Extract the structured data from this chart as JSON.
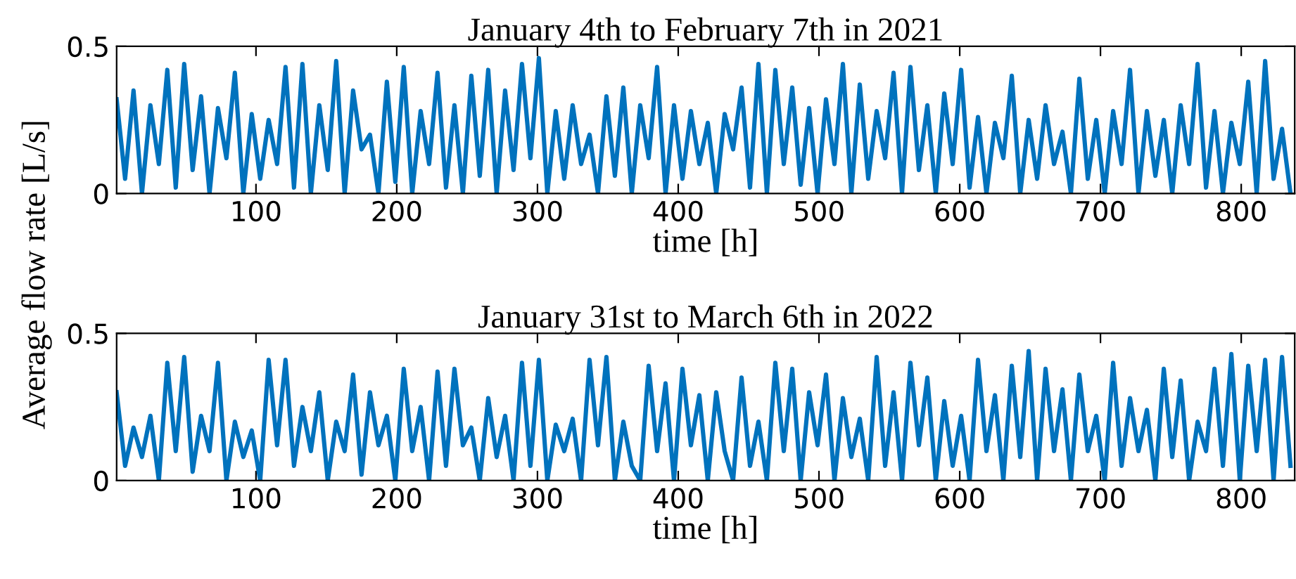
{
  "chart_data": [
    {
      "type": "line",
      "title": "January 4th to February 7th in 2021",
      "xlabel": "time [h]",
      "ylabel": "Average flow rate [L/s]",
      "xlim": [
        1,
        838
      ],
      "ylim": [
        0,
        0.5
      ],
      "xticks": [
        100,
        200,
        300,
        400,
        500,
        600,
        700,
        800
      ],
      "yticks": [
        0,
        0.5
      ],
      "grid": false,
      "legend": false,
      "line_style": "solid",
      "marker": "none",
      "x": [
        1,
        7,
        13,
        19,
        25,
        31,
        37,
        43,
        49,
        55,
        61,
        67,
        73,
        79,
        85,
        91,
        97,
        103,
        109,
        115,
        121,
        127,
        133,
        139,
        145,
        151,
        157,
        163,
        169,
        175,
        181,
        187,
        193,
        199,
        205,
        211,
        217,
        223,
        229,
        235,
        241,
        247,
        253,
        259,
        265,
        271,
        277,
        283,
        289,
        295,
        301,
        307,
        313,
        319,
        325,
        331,
        337,
        343,
        349,
        355,
        361,
        367,
        373,
        379,
        385,
        391,
        397,
        403,
        409,
        415,
        421,
        427,
        433,
        439,
        445,
        451,
        457,
        463,
        469,
        475,
        481,
        487,
        493,
        499,
        505,
        511,
        517,
        523,
        529,
        535,
        541,
        547,
        553,
        559,
        565,
        571,
        577,
        583,
        589,
        595,
        601,
        607,
        613,
        619,
        625,
        631,
        637,
        643,
        649,
        655,
        661,
        667,
        673,
        679,
        685,
        691,
        697,
        703,
        709,
        715,
        721,
        727,
        733,
        739,
        745,
        751,
        757,
        763,
        769,
        775,
        781,
        787,
        793,
        799,
        805,
        811,
        817,
        823,
        829,
        835
      ],
      "series": [
        {
          "color": "#0072bd",
          "values": [
            0.32,
            0.05,
            0.35,
            0.0,
            0.3,
            0.1,
            0.42,
            0.02,
            0.44,
            0.08,
            0.33,
            0.0,
            0.29,
            0.12,
            0.41,
            0.0,
            0.27,
            0.05,
            0.25,
            0.1,
            0.43,
            0.02,
            0.44,
            0.0,
            0.3,
            0.08,
            0.45,
            0.0,
            0.35,
            0.15,
            0.2,
            0.0,
            0.38,
            0.04,
            0.43,
            0.0,
            0.28,
            0.1,
            0.41,
            0.02,
            0.3,
            0.0,
            0.4,
            0.06,
            0.42,
            0.0,
            0.35,
            0.08,
            0.44,
            0.12,
            0.46,
            0.0,
            0.28,
            0.05,
            0.3,
            0.1,
            0.2,
            0.0,
            0.33,
            0.06,
            0.36,
            0.0,
            0.3,
            0.12,
            0.43,
            0.0,
            0.3,
            0.05,
            0.28,
            0.1,
            0.24,
            0.0,
            0.27,
            0.15,
            0.36,
            0.02,
            0.44,
            0.0,
            0.42,
            0.1,
            0.36,
            0.03,
            0.29,
            0.0,
            0.32,
            0.1,
            0.44,
            0.0,
            0.37,
            0.05,
            0.28,
            0.12,
            0.41,
            0.0,
            0.43,
            0.08,
            0.3,
            0.0,
            0.34,
            0.1,
            0.42,
            0.02,
            0.26,
            0.0,
            0.24,
            0.12,
            0.4,
            0.0,
            0.25,
            0.05,
            0.3,
            0.1,
            0.21,
            0.0,
            0.39,
            0.05,
            0.25,
            0.0,
            0.28,
            0.1,
            0.42,
            0.0,
            0.28,
            0.06,
            0.25,
            0.0,
            0.3,
            0.1,
            0.44,
            0.02,
            0.28,
            0.0,
            0.24,
            0.1,
            0.38,
            0.0,
            0.45,
            0.05,
            0.22,
            0.0
          ]
        }
      ]
    },
    {
      "type": "line",
      "title": "January 31st to March 6th in 2022",
      "xlabel": "time [h]",
      "xlim": [
        1,
        838
      ],
      "ylim": [
        0,
        0.5
      ],
      "xticks": [
        100,
        200,
        300,
        400,
        500,
        600,
        700,
        800
      ],
      "yticks": [
        0,
        0.5
      ],
      "grid": false,
      "legend": false,
      "line_style": "solid",
      "marker": "none",
      "x": [
        1,
        7,
        13,
        19,
        25,
        31,
        37,
        43,
        49,
        55,
        61,
        67,
        73,
        79,
        85,
        91,
        97,
        103,
        109,
        115,
        121,
        127,
        133,
        139,
        145,
        151,
        157,
        163,
        169,
        175,
        181,
        187,
        193,
        199,
        205,
        211,
        217,
        223,
        229,
        235,
        241,
        247,
        253,
        259,
        265,
        271,
        277,
        283,
        289,
        295,
        301,
        307,
        313,
        319,
        325,
        331,
        337,
        343,
        349,
        355,
        361,
        367,
        373,
        379,
        385,
        391,
        397,
        403,
        409,
        415,
        421,
        427,
        433,
        439,
        445,
        451,
        457,
        463,
        469,
        475,
        481,
        487,
        493,
        499,
        505,
        511,
        517,
        523,
        529,
        535,
        541,
        547,
        553,
        559,
        565,
        571,
        577,
        583,
        589,
        595,
        601,
        607,
        613,
        619,
        625,
        631,
        637,
        643,
        649,
        655,
        661,
        667,
        673,
        679,
        685,
        691,
        697,
        703,
        709,
        715,
        721,
        727,
        733,
        739,
        745,
        751,
        757,
        763,
        769,
        775,
        781,
        787,
        793,
        799,
        805,
        811,
        817,
        823,
        829,
        835
      ],
      "series": [
        {
          "color": "#0072bd",
          "values": [
            0.3,
            0.05,
            0.18,
            0.08,
            0.22,
            0.0,
            0.4,
            0.1,
            0.42,
            0.03,
            0.22,
            0.1,
            0.4,
            0.0,
            0.2,
            0.08,
            0.17,
            0.0,
            0.41,
            0.12,
            0.41,
            0.05,
            0.25,
            0.1,
            0.3,
            0.0,
            0.2,
            0.1,
            0.36,
            0.02,
            0.3,
            0.12,
            0.22,
            0.0,
            0.38,
            0.1,
            0.25,
            0.0,
            0.37,
            0.05,
            0.38,
            0.12,
            0.18,
            0.0,
            0.28,
            0.08,
            0.22,
            0.0,
            0.4,
            0.05,
            0.41,
            0.0,
            0.19,
            0.1,
            0.21,
            0.0,
            0.41,
            0.12,
            0.42,
            0.0,
            0.2,
            0.05,
            0.0,
            0.39,
            0.1,
            0.33,
            0.0,
            0.38,
            0.12,
            0.29,
            0.0,
            0.3,
            0.1,
            0.0,
            0.35,
            0.05,
            0.2,
            0.0,
            0.4,
            0.1,
            0.38,
            0.0,
            0.3,
            0.12,
            0.36,
            0.0,
            0.28,
            0.08,
            0.21,
            0.0,
            0.42,
            0.05,
            0.3,
            0.0,
            0.4,
            0.12,
            0.35,
            0.0,
            0.27,
            0.05,
            0.22,
            0.0,
            0.41,
            0.1,
            0.29,
            0.0,
            0.39,
            0.08,
            0.44,
            0.0,
            0.38,
            0.1,
            0.31,
            0.0,
            0.36,
            0.1,
            0.22,
            0.0,
            0.4,
            0.05,
            0.28,
            0.1,
            0.24,
            0.0,
            0.38,
            0.08,
            0.34,
            0.0,
            0.2,
            0.1,
            0.38,
            0.05,
            0.43,
            0.0,
            0.39,
            0.1,
            0.41,
            0.0,
            0.42,
            0.05
          ]
        }
      ]
    }
  ]
}
